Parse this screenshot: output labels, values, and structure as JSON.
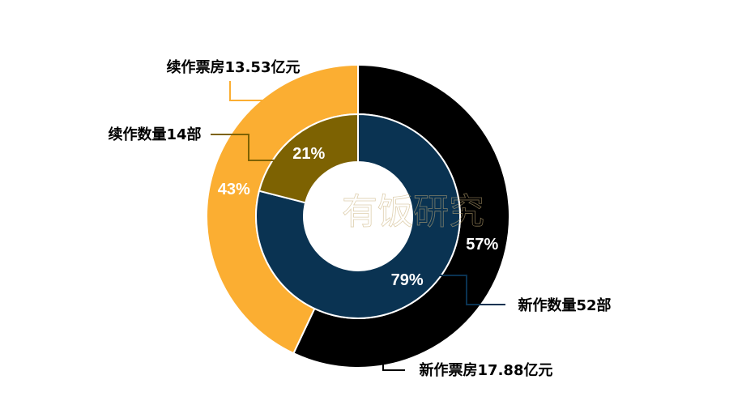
{
  "watermark": "有饭研究",
  "chart_data": {
    "type": "donut",
    "outer": {
      "slices": [
        {
          "key": "new_box",
          "value": 57,
          "percent_label": "57%",
          "label": "新作票房17.88亿元",
          "color": "#000000",
          "leader_color": "#000000"
        },
        {
          "key": "sequel_box",
          "value": 43,
          "percent_label": "43%",
          "label": "续作票房13.53亿元",
          "color": "#FBAE32",
          "leader_color": "#FBAE32"
        }
      ]
    },
    "inner": {
      "slices": [
        {
          "key": "new_count",
          "value": 79,
          "percent_label": "79%",
          "label": "新作数量52部",
          "color": "#0A3352",
          "leader_color": "#0A3352"
        },
        {
          "key": "sequel_count",
          "value": 21,
          "percent_label": "21%",
          "label": "续作数量14部",
          "color": "#7D6202",
          "leader_color": "#7D6202"
        }
      ]
    }
  }
}
